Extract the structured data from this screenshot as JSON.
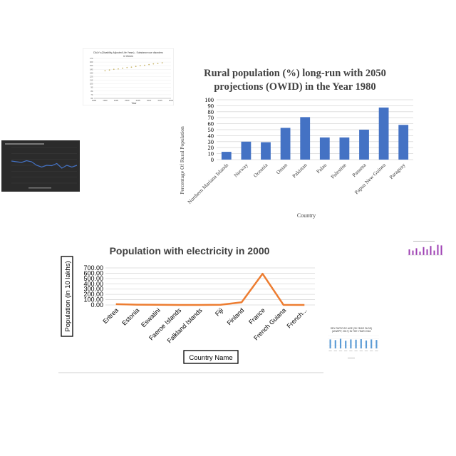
{
  "colors": {
    "bar": "#4472c4",
    "line": "#ed7d31",
    "grid": "#d9d9d9",
    "dark_panel": "#2b2b2b",
    "thumb_blue": "#4472c4",
    "thumb_purple": "#9e3fb3",
    "thumb_light_blue": "#5b9bd5"
  },
  "chart_data": [
    {
      "type": "bar",
      "title_line1": "Rural population (%) long-run with 2050",
      "title_line2": "projections (OWID) in the Year 1980",
      "xlabel": "Country",
      "ylabel": "Percentage Of Rural Population",
      "categories": [
        "Northern Mariana Islands",
        "Norway",
        "Oceania",
        "Oman",
        "Pakistan",
        "Palau",
        "Palestine",
        "Panama",
        "Papua New Guinea",
        "Paraguay"
      ],
      "values": [
        13,
        30,
        29,
        53,
        71,
        37,
        37,
        50,
        87,
        58
      ],
      "ylim": [
        0,
        100
      ],
      "yticks": [
        "0",
        "10",
        "20",
        "30",
        "40",
        "50",
        "60",
        "70",
        "80",
        "90",
        "100"
      ],
      "grid": true
    },
    {
      "type": "line",
      "title": "Population with electricity in 2000",
      "xlabel": "Country Name",
      "ylabel": "Population (in 10 lakhs)",
      "categories": [
        "Eritrea",
        "Estonia",
        "Eswatini",
        "Faeroe Islands",
        "Falkland Islands",
        "Fiji",
        "Finland",
        "France",
        "French Guiana",
        "French..."
      ],
      "values": [
        15,
        5,
        3,
        0.5,
        0.1,
        3,
        51,
        590,
        1,
        0.5
      ],
      "ylim": [
        0,
        700
      ],
      "yticks": [
        "0.00",
        "100.00",
        "200.00",
        "300.00",
        "400.00",
        "500.00",
        "600.00",
        "700.00"
      ],
      "grid": true
    },
    {
      "type": "scatter",
      "title_line1": "DALYs (Disability-Adjusted Life Years) - Substance use disorders",
      "title_line2": "in Yemen",
      "xlabel": "Year",
      "ylabel": "",
      "x": [
        1990,
        1992,
        1994,
        1996,
        1998,
        2000,
        2002,
        2004,
        2006,
        2008,
        2010,
        2012,
        2014,
        2016
      ],
      "y": [
        136,
        138,
        140,
        141,
        143,
        145,
        146,
        148,
        150,
        151,
        153,
        155,
        156,
        158
      ],
      "xticks": [
        "1985",
        "1990",
        "1995",
        "2000",
        "2005",
        "2010",
        "2015",
        "2020"
      ],
      "yticks": [
        "60",
        "70",
        "80",
        "90",
        "100",
        "110",
        "120",
        "130",
        "140",
        "150",
        "160",
        "170"
      ],
      "ylim": [
        60,
        170
      ],
      "xlim": [
        1985,
        2020
      ]
    },
    {
      "type": "line",
      "title": "",
      "values": [
        0.62,
        0.6,
        0.58,
        0.63,
        0.6,
        0.5,
        0.45,
        0.5,
        0.49,
        0.55,
        0.42,
        0.5,
        0.45,
        0.5
      ],
      "ylim": [
        0,
        1
      ]
    },
    {
      "type": "bar",
      "title": "",
      "values": [
        0.5,
        0.4,
        0.6,
        0.3,
        0.7,
        0.5,
        0.8,
        0.4,
        0.9,
        0.85
      ],
      "ylim": [
        0,
        1
      ]
    },
    {
      "type": "bar",
      "title_line1": "SEX RATIO BY AGE (30 YEAR OLDS)",
      "title_line2": "(UNWPP, 2017) IN THE YEAR 2016",
      "values": [
        0.7,
        0.65,
        0.75,
        0.6,
        0.7,
        0.68,
        0.72,
        0.62,
        0.7,
        0.66
      ],
      "ylim": [
        0,
        1
      ]
    }
  ]
}
